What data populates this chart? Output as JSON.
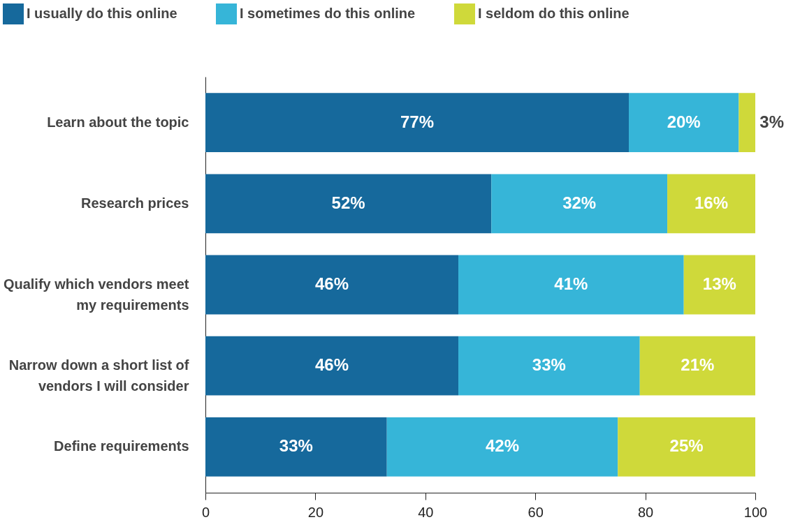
{
  "chart_data": {
    "type": "bar",
    "orientation": "horizontal",
    "stacked": true,
    "categories": [
      "Learn about the topic",
      "Research prices",
      "Qualify which vendors meet my requirements",
      "Narrow down a short list of vendors I will consider",
      "Define requirements"
    ],
    "series": [
      {
        "name": "I usually do this online",
        "color": "#16699c",
        "values": [
          77,
          52,
          46,
          46,
          33
        ],
        "value_labels": [
          "77%",
          "52%",
          "46%",
          "46%",
          "33%"
        ]
      },
      {
        "name": "I sometimes do this online",
        "color": "#36b5d8",
        "values": [
          20,
          32,
          41,
          33,
          42
        ],
        "value_labels": [
          "20%",
          "32%",
          "41%",
          "33%",
          "42%"
        ]
      },
      {
        "name": "I seldom do this online",
        "color": "#cfd93a",
        "values": [
          3,
          16,
          13,
          21,
          25
        ],
        "value_labels": [
          "3%",
          "16%",
          "13%",
          "21%",
          "25%"
        ]
      }
    ],
    "xlim": [
      0,
      100
    ],
    "xticks": [
      0,
      20,
      40,
      60,
      80,
      100
    ],
    "grid": false,
    "legend": "top"
  }
}
